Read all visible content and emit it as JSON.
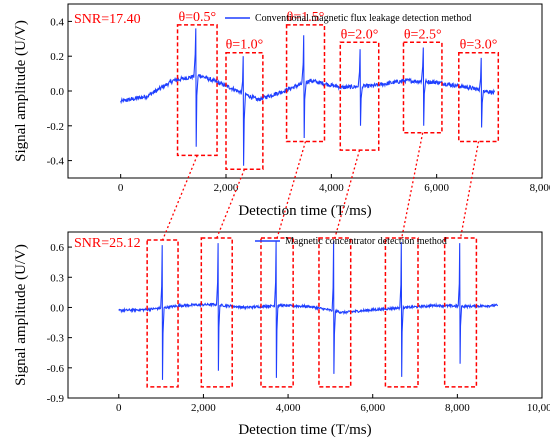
{
  "colors": {
    "signal": "#1f3fff",
    "annot": "#ff0000",
    "axis": "#000000"
  },
  "chart_data": [
    {
      "type": "line",
      "snr_label": "SNR=17.40",
      "legend": "Conventional magnetic flux leakage detection method",
      "xlabel": "Detection time (T/ms)",
      "ylabel": "Signal amplitude (U/V)",
      "xlim": [
        -1000,
        8000
      ],
      "ylim": [
        -0.5,
        0.5
      ],
      "x_ticks": [
        0,
        2000,
        4000,
        6000,
        8000
      ],
      "x_tick_labels": [
        "0",
        "2,000",
        "4,000",
        "6,000",
        "8,000"
      ],
      "y_ticks": [
        -0.4,
        -0.2,
        0.0,
        0.2,
        0.4
      ],
      "y_tick_labels": [
        "-0.4",
        "-0.2",
        "0.0",
        "0.2",
        "0.4"
      ],
      "series": [
        {
          "name": "Conventional magnetic flux leakage detection method",
          "x_range": [
            0,
            7100
          ],
          "baseline": [
            [
              0,
              -0.06
            ],
            [
              500,
              -0.03
            ],
            [
              1000,
              0.06
            ],
            [
              1500,
              0.09
            ],
            [
              2000,
              0.03
            ],
            [
              2600,
              -0.05
            ],
            [
              3100,
              0.0
            ],
            [
              3600,
              0.06
            ],
            [
              4200,
              0.02
            ],
            [
              4800,
              0.03
            ],
            [
              5400,
              0.06
            ],
            [
              6000,
              0.05
            ],
            [
              6600,
              0.02
            ],
            [
              7100,
              -0.01
            ]
          ],
          "pulses": [
            {
              "x": 1430,
              "peak": 0.36,
              "trough": -0.32
            },
            {
              "x": 2330,
              "peak": 0.2,
              "trough": -0.43
            },
            {
              "x": 3480,
              "peak": 0.32,
              "trough": -0.27
            },
            {
              "x": 4550,
              "peak": 0.24,
              "trough": -0.2
            },
            {
              "x": 5750,
              "peak": 0.25,
              "trough": -0.2
            },
            {
              "x": 6850,
              "peak": 0.19,
              "trough": -0.21
            }
          ]
        }
      ],
      "boxes": [
        {
          "label": "θ=0.5°",
          "x0": 1080,
          "x1": 1830,
          "y0": -0.37,
          "y1": 0.38
        },
        {
          "label": "θ=1.0°",
          "x0": 2000,
          "x1": 2700,
          "y0": -0.45,
          "y1": 0.22
        },
        {
          "label": "θ=1.5°",
          "x0": 3150,
          "x1": 3870,
          "y0": -0.29,
          "y1": 0.38
        },
        {
          "label": "θ=2.0°",
          "x0": 4170,
          "x1": 4900,
          "y0": -0.34,
          "y1": 0.28
        },
        {
          "label": "θ=2.5°",
          "x0": 5370,
          "x1": 6100,
          "y0": -0.24,
          "y1": 0.28
        },
        {
          "label": "θ=3.0°",
          "x0": 6420,
          "x1": 7170,
          "y0": -0.29,
          "y1": 0.22
        }
      ]
    },
    {
      "type": "line",
      "snr_label": "SNR=25.12",
      "legend": "Magnetic concentrator detection method",
      "xlabel": "Detection time (T/ms)",
      "ylabel": "Signal amplitude (U/V)",
      "xlim": [
        -1200,
        10000
      ],
      "ylim": [
        -0.9,
        0.75
      ],
      "x_ticks": [
        0,
        2000,
        4000,
        6000,
        8000,
        10000
      ],
      "x_tick_labels": [
        "0",
        "2,000",
        "4,000",
        "6,000",
        "8,000",
        "10,000"
      ],
      "y_ticks": [
        -0.9,
        -0.6,
        -0.3,
        0.0,
        0.3,
        0.6
      ],
      "y_tick_labels": [
        "-0.9",
        "-0.6",
        "-0.3",
        "0.0",
        "0.3",
        "0.6"
      ],
      "series": [
        {
          "name": "Magnetic concentrator detection method",
          "x_range": [
            0,
            8950
          ],
          "baseline": [
            [
              0,
              -0.03
            ],
            [
              700,
              -0.02
            ],
            [
              1500,
              0.02
            ],
            [
              2200,
              0.03
            ],
            [
              3000,
              0.0
            ],
            [
              3800,
              0.02
            ],
            [
              4500,
              0.01
            ],
            [
              5300,
              -0.05
            ],
            [
              6100,
              -0.02
            ],
            [
              6800,
              0.0
            ],
            [
              7500,
              0.02
            ],
            [
              8200,
              0.01
            ],
            [
              8950,
              0.02
            ]
          ],
          "pulses": [
            {
              "x": 1030,
              "peak": 0.62,
              "trough": -0.72
            },
            {
              "x": 2350,
              "peak": 0.64,
              "trough": -0.63
            },
            {
              "x": 3720,
              "peak": 0.66,
              "trough": -0.7
            },
            {
              "x": 5080,
              "peak": 0.66,
              "trough": -0.66
            },
            {
              "x": 6680,
              "peak": 0.65,
              "trough": -0.69
            },
            {
              "x": 8060,
              "peak": 0.64,
              "trough": -0.56
            }
          ]
        }
      ],
      "boxes": [
        {
          "x0": 670,
          "x1": 1400,
          "y0": -0.79,
          "y1": 0.67
        },
        {
          "x0": 1950,
          "x1": 2680,
          "y0": -0.79,
          "y1": 0.69
        },
        {
          "x0": 3360,
          "x1": 4120,
          "y0": -0.79,
          "y1": 0.69
        },
        {
          "x0": 4730,
          "x1": 5480,
          "y0": -0.79,
          "y1": 0.69
        },
        {
          "x0": 6300,
          "x1": 7070,
          "y0": -0.79,
          "y1": 0.69
        },
        {
          "x0": 7700,
          "x1": 8450,
          "y0": -0.79,
          "y1": 0.69
        }
      ]
    }
  ]
}
